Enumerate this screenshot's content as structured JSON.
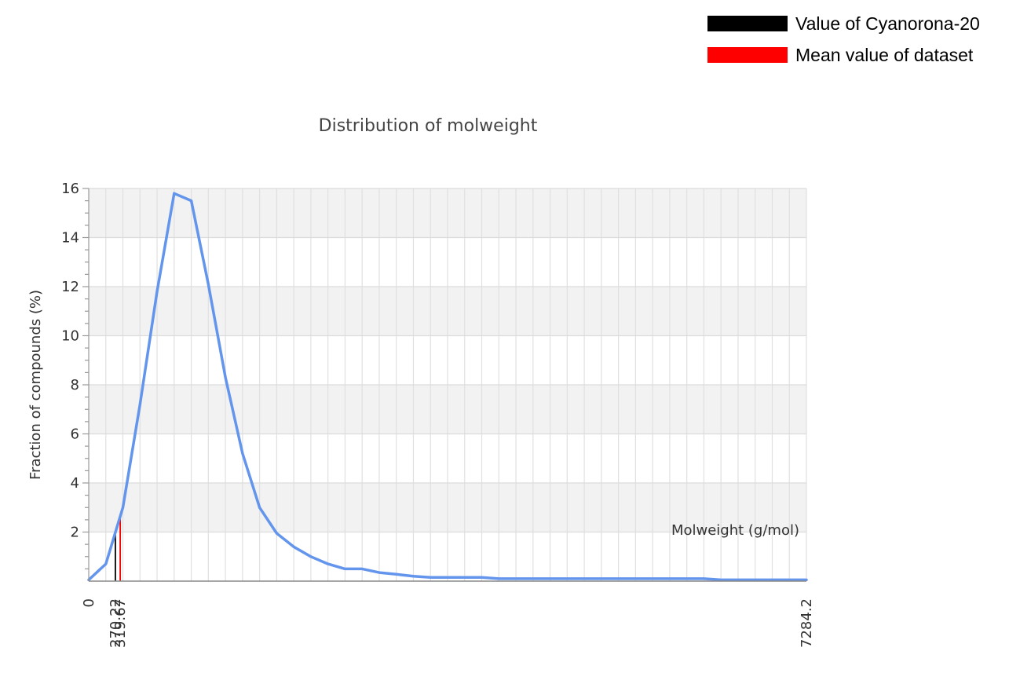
{
  "chart_data": {
    "type": "line",
    "title": "Distribution of molweight",
    "xlabel": "Molweight (g/mol)",
    "ylabel": "Fraction of compounds (%)",
    "xlim": [
      0,
      7284.2
    ],
    "ylim": [
      0,
      16
    ],
    "y_ticks": [
      2,
      4,
      6,
      8,
      10,
      12,
      14,
      16
    ],
    "y_tick_labels": [
      "2",
      "4",
      "6",
      "8",
      "10",
      "12",
      "14",
      "16"
    ],
    "x_tick_labels": [
      {
        "value": 0,
        "label": "0"
      },
      {
        "value": 270.22,
        "label": "270.22"
      },
      {
        "value": 319.67,
        "label": "319.67"
      },
      {
        "value": 7284.2,
        "label": "7284.2"
      }
    ],
    "x_bin_count": 42,
    "grid": true,
    "legend_position": "top-right",
    "legend": [
      {
        "label": "Value of Cyanorona-20",
        "color": "#000000"
      },
      {
        "label": "Mean value of dataset",
        "color": "#ff0000"
      }
    ],
    "markers": [
      {
        "name": "Value of Cyanorona-20",
        "x": 270.22,
        "color": "#000000"
      },
      {
        "name": "Mean value of dataset",
        "x": 319.67,
        "color": "#ff0000"
      }
    ],
    "series": [
      {
        "color": "#6495ed",
        "values": [
          0.05,
          0.7,
          3.0,
          7.2,
          11.8,
          15.8,
          15.5,
          12.1,
          8.3,
          5.2,
          3.0,
          1.95,
          1.4,
          1.0,
          0.7,
          0.5,
          0.5,
          0.35,
          0.28,
          0.2,
          0.15,
          0.15,
          0.15,
          0.15,
          0.1,
          0.1,
          0.1,
          0.1,
          0.1,
          0.1,
          0.1,
          0.1,
          0.1,
          0.1,
          0.1,
          0.1,
          0.1,
          0.05,
          0.05,
          0.05,
          0.05,
          0.05,
          0.05
        ]
      }
    ]
  }
}
